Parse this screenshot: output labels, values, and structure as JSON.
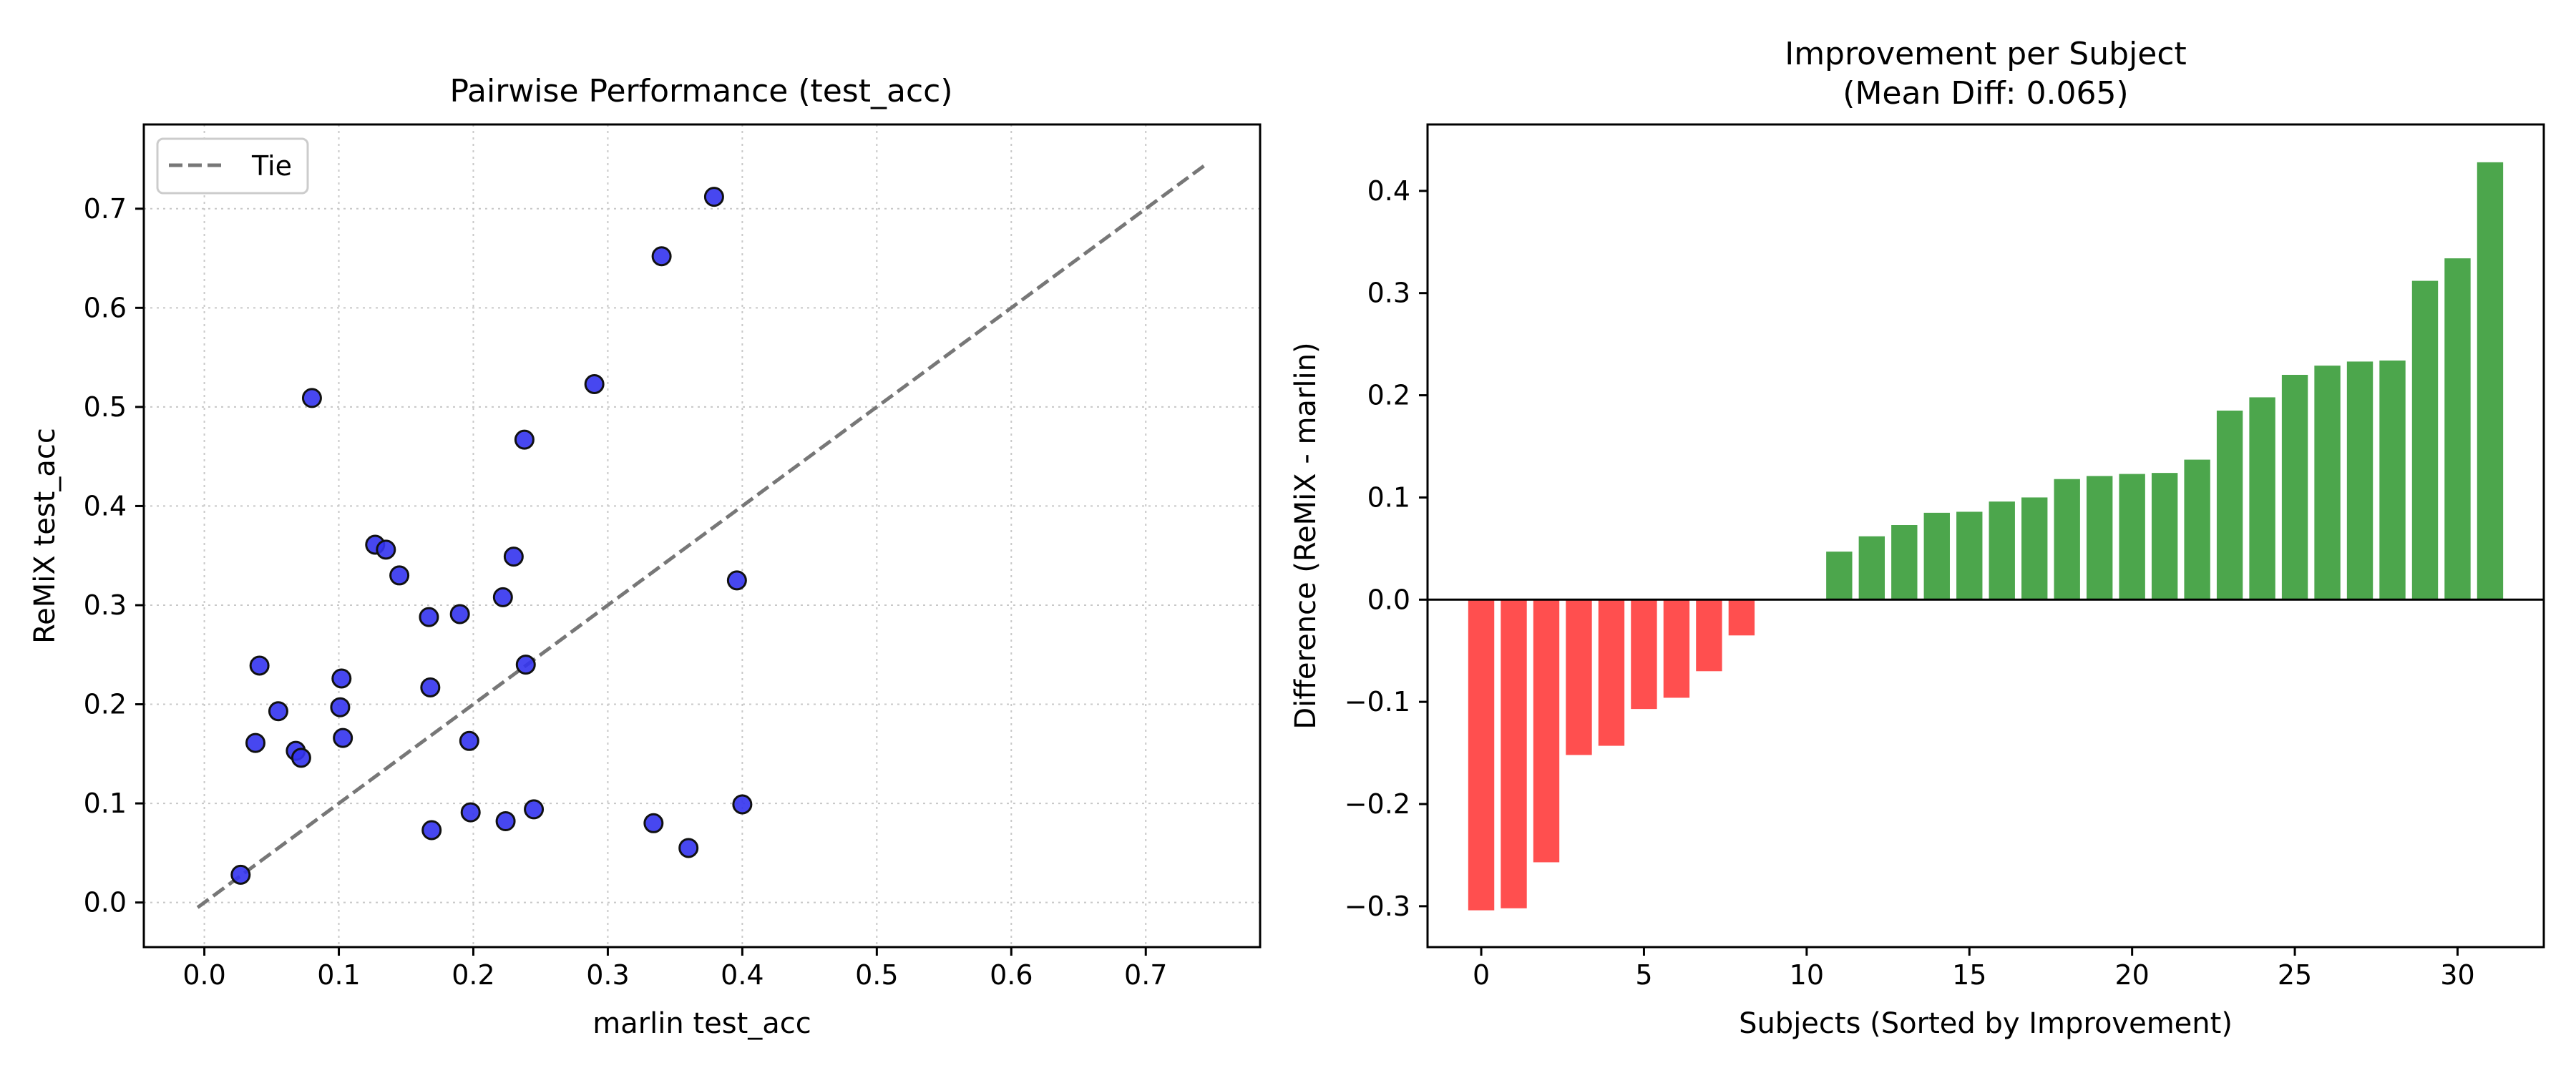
{
  "chart_data": [
    {
      "type": "scatter",
      "title": "Pairwise Performance (test_acc)",
      "xlabel": "marlin test_acc",
      "ylabel": "ReMiX test_acc",
      "xlim": [
        -0.045,
        0.785
      ],
      "ylim": [
        -0.045,
        0.785
      ],
      "xticks": [
        "0.0",
        "0.1",
        "0.2",
        "0.3",
        "0.4",
        "0.5",
        "0.6",
        "0.7"
      ],
      "yticks": [
        "0.0",
        "0.1",
        "0.2",
        "0.3",
        "0.4",
        "0.5",
        "0.6",
        "0.7"
      ],
      "grid": true,
      "legend": {
        "position": "top-left",
        "entries": [
          "Tie"
        ]
      },
      "tie_line": {
        "name": "Tie",
        "from": -0.005,
        "to": 0.745,
        "color": "#777777"
      },
      "point_color": "#3333ee",
      "points": [
        {
          "x": 0.027,
          "y": 0.028
        },
        {
          "x": 0.038,
          "y": 0.161
        },
        {
          "x": 0.041,
          "y": 0.239
        },
        {
          "x": 0.055,
          "y": 0.193
        },
        {
          "x": 0.068,
          "y": 0.153
        },
        {
          "x": 0.072,
          "y": 0.146
        },
        {
          "x": 0.08,
          "y": 0.509
        },
        {
          "x": 0.101,
          "y": 0.197
        },
        {
          "x": 0.102,
          "y": 0.226
        },
        {
          "x": 0.103,
          "y": 0.166
        },
        {
          "x": 0.127,
          "y": 0.361
        },
        {
          "x": 0.135,
          "y": 0.356
        },
        {
          "x": 0.145,
          "y": 0.33
        },
        {
          "x": 0.167,
          "y": 0.288
        },
        {
          "x": 0.168,
          "y": 0.217
        },
        {
          "x": 0.169,
          "y": 0.073
        },
        {
          "x": 0.19,
          "y": 0.291
        },
        {
          "x": 0.197,
          "y": 0.163
        },
        {
          "x": 0.198,
          "y": 0.091
        },
        {
          "x": 0.222,
          "y": 0.308
        },
        {
          "x": 0.224,
          "y": 0.082
        },
        {
          "x": 0.23,
          "y": 0.349
        },
        {
          "x": 0.238,
          "y": 0.467
        },
        {
          "x": 0.239,
          "y": 0.24
        },
        {
          "x": 0.245,
          "y": 0.094
        },
        {
          "x": 0.29,
          "y": 0.523
        },
        {
          "x": 0.334,
          "y": 0.08
        },
        {
          "x": 0.34,
          "y": 0.652
        },
        {
          "x": 0.36,
          "y": 0.055
        },
        {
          "x": 0.379,
          "y": 0.712
        },
        {
          "x": 0.396,
          "y": 0.325
        },
        {
          "x": 0.4,
          "y": 0.099
        }
      ]
    },
    {
      "type": "bar",
      "title": "Improvement per Subject\n(Mean Diff: 0.065)",
      "title_lines": [
        "Improvement per Subject",
        "(Mean Diff: 0.065)"
      ],
      "xlabel": "Subjects (Sorted by Improvement)",
      "ylabel": "Difference (ReMiX - marlin)",
      "xlim": [
        -1.65,
        32.65
      ],
      "ylim": [
        -0.34,
        0.465
      ],
      "xticks": [
        "0",
        "5",
        "10",
        "15",
        "20",
        "25",
        "30"
      ],
      "yticks": [
        "−0.3",
        "−0.2",
        "−0.1",
        "0.0",
        "0.1",
        "0.2",
        "0.3",
        "0.4"
      ],
      "grid": false,
      "positive_color": "#4ca64c",
      "negative_color": "#ff4f4f",
      "categories": [
        0,
        1,
        2,
        3,
        4,
        5,
        6,
        7,
        8,
        9,
        10,
        11,
        12,
        13,
        14,
        15,
        16,
        17,
        18,
        19,
        20,
        21,
        22,
        23,
        24,
        25,
        26,
        27,
        28,
        29,
        30,
        31
      ],
      "values": [
        -0.304,
        -0.302,
        -0.257,
        -0.152,
        -0.143,
        -0.107,
        -0.096,
        -0.07,
        -0.035,
        0.0,
        0.0,
        0.047,
        0.062,
        0.073,
        0.085,
        0.086,
        0.096,
        0.1,
        0.118,
        0.121,
        0.123,
        0.124,
        0.137,
        0.185,
        0.198,
        0.22,
        0.229,
        0.233,
        0.234,
        0.312,
        0.334,
        0.428
      ]
    }
  ]
}
